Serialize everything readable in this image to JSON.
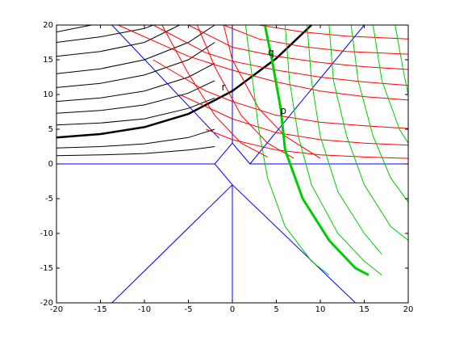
{
  "chart_data": {
    "type": "line",
    "xlim": [
      -20,
      20
    ],
    "ylim": [
      -20,
      20
    ],
    "xticks": [
      -20,
      -15,
      -10,
      -5,
      0,
      5,
      10,
      15,
      20
    ],
    "yticks": [
      -20,
      -15,
      -10,
      -5,
      0,
      5,
      10,
      15,
      20
    ],
    "annotations": [
      "r",
      "q",
      "p"
    ],
    "series": [
      {
        "color": "#0000ff",
        "line_width": 1,
        "x": [
          -20,
          -2,
          0,
          2,
          20,
          null,
          0,
          -2,
          null,
          0,
          0,
          null,
          -1.5,
          -13.7,
          null,
          0,
          0,
          null,
          0,
          -13.7,
          null,
          0,
          14,
          null,
          2,
          15,
          null,
          0,
          2
        ],
        "values": [
          0,
          0,
          3,
          0,
          0,
          null,
          -3,
          0,
          null,
          3,
          20,
          null,
          3.7,
          20,
          null,
          -3,
          -20,
          null,
          -3,
          -20,
          null,
          -3,
          -20,
          null,
          0,
          20,
          null,
          3,
          0
        ]
      },
      {
        "color": "#000000",
        "line_width": 1,
        "x": [
          -20,
          -18,
          -16
        ],
        "values": [
          19,
          19.5,
          20
        ]
      },
      {
        "color": "#000000",
        "line_width": 1,
        "x": [
          -20,
          -15,
          -10,
          -9
        ],
        "values": [
          17.5,
          18.3,
          19.5,
          20
        ]
      },
      {
        "color": "#000000",
        "line_width": 1,
        "x": [
          -20,
          -15,
          -10,
          -6
        ],
        "values": [
          15.5,
          16.2,
          17.5,
          20
        ]
      },
      {
        "color": "#000000",
        "line_width": 1,
        "x": [
          -20,
          -15,
          -10,
          -5,
          -2
        ],
        "values": [
          13,
          13.7,
          15,
          17.5,
          20
        ]
      },
      {
        "color": "#000000",
        "line_width": 1,
        "x": [
          -20,
          -15,
          -10,
          -5,
          -2
        ],
        "values": [
          11,
          11.6,
          12.8,
          15,
          17.5
        ]
      },
      {
        "color": "#000000",
        "line_width": 1,
        "x": [
          -20,
          -15,
          -10,
          -5,
          -2
        ],
        "values": [
          9,
          9.5,
          10.5,
          12.5,
          14.5
        ]
      },
      {
        "color": "#000000",
        "line_width": 1,
        "x": [
          -20,
          -15,
          -10,
          -5,
          -2
        ],
        "values": [
          7.3,
          7.7,
          8.5,
          10.2,
          12
        ]
      },
      {
        "color": "#000000",
        "line_width": 1,
        "x": [
          -20,
          -15,
          -10,
          -5,
          -2
        ],
        "values": [
          5.6,
          5.9,
          6.5,
          8,
          9.5
        ]
      },
      {
        "color": "#000000",
        "line_width": 1,
        "x": [
          -20,
          -15,
          -10,
          -5,
          -2
        ],
        "values": [
          2.3,
          2.5,
          2.9,
          3.8,
          5
        ]
      },
      {
        "color": "#000000",
        "line_width": 1,
        "x": [
          -20,
          -15,
          -10,
          -5,
          -2
        ],
        "values": [
          1.2,
          1.3,
          1.5,
          2,
          2.5
        ]
      },
      {
        "color": "#000000",
        "line_width": 2.5,
        "x": [
          -20,
          -15,
          -10,
          -5,
          0,
          5,
          9
        ],
        "values": [
          3.8,
          4.3,
          5.3,
          7.2,
          10.5,
          15.2,
          20
        ]
      },
      {
        "color": "#ff0000",
        "line_width": 1,
        "x": [
          -13,
          -5,
          0,
          5,
          10,
          15,
          20
        ],
        "values": [
          20,
          15.5,
          13.5,
          11.8,
          10.5,
          9.7,
          9.2
        ]
      },
      {
        "color": "#ff0000",
        "line_width": 1,
        "x": [
          -9,
          -3,
          0,
          5,
          10,
          15,
          20
        ],
        "values": [
          20,
          16,
          14.8,
          13.5,
          12.5,
          11.8,
          11.3
        ]
      },
      {
        "color": "#ff0000",
        "line_width": 1,
        "x": [
          -5,
          0,
          5,
          10,
          15,
          20
        ],
        "values": [
          20,
          16.8,
          15.5,
          14.6,
          14,
          13.6
        ]
      },
      {
        "color": "#ff0000",
        "line_width": 1,
        "x": [
          -1,
          3,
          8,
          13,
          20
        ],
        "values": [
          20,
          18,
          16.9,
          16.2,
          15.8
        ]
      },
      {
        "color": "#ff0000",
        "line_width": 1,
        "x": [
          3,
          8,
          13,
          20
        ],
        "values": [
          20,
          19,
          18.4,
          18
        ]
      },
      {
        "color": "#ff0000",
        "line_width": 1,
        "x": [
          -3,
          0,
          5,
          10,
          15,
          20
        ],
        "values": [
          5,
          3.5,
          2,
          1.3,
          1,
          0.8
        ]
      },
      {
        "color": "#ff0000",
        "line_width": 1,
        "x": [
          -6,
          0,
          5,
          10,
          15,
          20
        ],
        "values": [
          10,
          6.5,
          4.5,
          3.5,
          3,
          2.7
        ]
      },
      {
        "color": "#ff0000",
        "line_width": 1,
        "x": [
          -9,
          -3,
          0,
          5,
          10,
          15,
          20
        ],
        "values": [
          15,
          10.5,
          9,
          7,
          6,
          5.5,
          5.1
        ]
      },
      {
        "color": "#ff0000",
        "line_width": 1,
        "x": [
          -1,
          0,
          3,
          6,
          10
        ],
        "values": [
          20,
          15,
          8,
          4,
          0.8
        ]
      },
      {
        "color": "#ff0000",
        "line_width": 1,
        "x": [
          -4,
          -2,
          1,
          4,
          7
        ],
        "values": [
          20,
          14,
          7,
          3,
          0.8
        ]
      },
      {
        "color": "#ff0000",
        "line_width": 1,
        "x": [
          -8,
          -5,
          -2,
          1,
          4
        ],
        "values": [
          20,
          13,
          7,
          3,
          1
        ]
      },
      {
        "color": "#00cc00",
        "line_width": 1,
        "x": [
          1.5,
          2.3,
          3,
          4,
          6,
          9,
          11
        ],
        "values": [
          20,
          12,
          5,
          -2,
          -9,
          -14,
          -16
        ]
      },
      {
        "color": "#00cc00",
        "line_width": 1,
        "x": [
          6,
          6.5,
          7.5,
          9,
          12,
          15,
          17
        ],
        "values": [
          20,
          12,
          4,
          -3,
          -10,
          -14,
          -16
        ]
      },
      {
        "color": "#00cc00",
        "line_width": 1,
        "x": [
          8.5,
          9,
          10,
          12,
          15,
          17
        ],
        "values": [
          20,
          12,
          4,
          -4,
          -10,
          -13
        ]
      },
      {
        "color": "#00cc00",
        "line_width": 1,
        "x": [
          11,
          11.5,
          13,
          15,
          18,
          20
        ],
        "values": [
          20,
          12,
          4,
          -3,
          -9,
          -11
        ]
      },
      {
        "color": "#00cc00",
        "line_width": 1,
        "x": [
          13.5,
          14.3,
          16,
          18,
          20
        ],
        "values": [
          20,
          12,
          4,
          -2,
          -5.5
        ]
      },
      {
        "color": "#00cc00",
        "line_width": 1,
        "x": [
          16,
          17,
          19,
          20
        ],
        "values": [
          20,
          12,
          5,
          3
        ]
      },
      {
        "color": "#00cc00",
        "line_width": 1,
        "x": [
          18.5,
          19.5,
          20
        ],
        "values": [
          20,
          13,
          10
        ]
      },
      {
        "color": "#00cc00",
        "line_width": 3,
        "x": [
          3.7,
          4.5,
          5.5,
          6,
          8,
          11,
          14,
          15.5
        ],
        "values": [
          20,
          15,
          8,
          2,
          -5,
          -11,
          -15,
          -16
        ]
      }
    ]
  }
}
